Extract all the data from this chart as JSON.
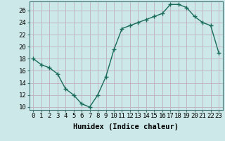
{
  "x": [
    0,
    1,
    2,
    3,
    4,
    5,
    6,
    7,
    8,
    9,
    10,
    11,
    12,
    13,
    14,
    15,
    16,
    17,
    18,
    19,
    20,
    21,
    22,
    23
  ],
  "y": [
    18,
    17,
    16.5,
    15.5,
    13,
    12,
    10.5,
    10,
    12,
    15,
    19.5,
    23,
    23.5,
    24,
    24.5,
    25,
    25.5,
    27,
    27,
    26.5,
    25,
    24,
    23.5,
    19
  ],
  "line_color": "#1a6b5a",
  "marker": "+",
  "marker_size": 4,
  "bg_color": "#cce8e8",
  "grid_color": "#c0afc0",
  "xlabel": "Humidex (Indice chaleur)",
  "xlim": [
    -0.5,
    23.5
  ],
  "ylim": [
    9.5,
    27.5
  ],
  "ytick_values": [
    10,
    12,
    14,
    16,
    18,
    20,
    22,
    24,
    26
  ],
  "xlabel_fontsize": 7.5,
  "tick_fontsize": 6.5,
  "linewidth": 1.0
}
